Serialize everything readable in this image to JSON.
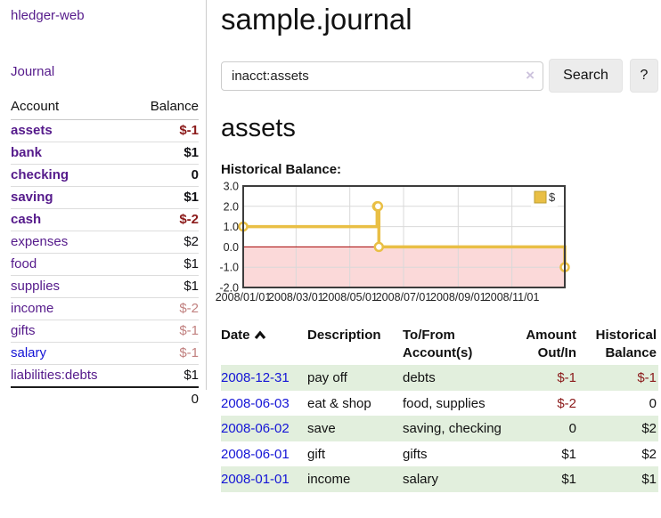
{
  "app": {
    "title": "hledger-web",
    "nav_journal": "Journal"
  },
  "sidebar": {
    "headers": {
      "account": "Account",
      "balance": "Balance"
    },
    "accounts": [
      {
        "name": "assets",
        "depth": 1,
        "in_filter": true,
        "link_color": "purple",
        "balance": "$-1",
        "balance_class": "neg-strong"
      },
      {
        "name": "bank",
        "depth": 2,
        "in_filter": true,
        "link_color": "purple",
        "balance": "$1",
        "balance_class": "pos-strong"
      },
      {
        "name": "checking",
        "depth": 3,
        "in_filter": true,
        "link_color": "purple",
        "balance": "0",
        "balance_class": "pos-strong"
      },
      {
        "name": "saving",
        "depth": 3,
        "in_filter": true,
        "link_color": "purple",
        "balance": "$1",
        "balance_class": "pos-strong"
      },
      {
        "name": "cash",
        "depth": 2,
        "in_filter": true,
        "link_color": "purple",
        "balance": "$-2",
        "balance_class": "neg-strong"
      },
      {
        "name": "expenses",
        "depth": 1,
        "in_filter": false,
        "link_color": "purple",
        "balance": "$2",
        "balance_class": "pos"
      },
      {
        "name": "food",
        "depth": 2,
        "in_filter": false,
        "link_color": "purple",
        "balance": "$1",
        "balance_class": "pos"
      },
      {
        "name": "supplies",
        "depth": 2,
        "in_filter": false,
        "link_color": "purple",
        "balance": "$1",
        "balance_class": "pos"
      },
      {
        "name": "income",
        "depth": 1,
        "in_filter": false,
        "link_color": "purple",
        "balance": "$-2",
        "balance_class": "neg-faded"
      },
      {
        "name": "gifts",
        "depth": 2,
        "in_filter": false,
        "link_color": "purple",
        "balance": "$-1",
        "balance_class": "neg-faded"
      },
      {
        "name": "salary",
        "depth": 2,
        "in_filter": false,
        "link_color": "blue",
        "balance": "$-1",
        "balance_class": "neg-faded"
      },
      {
        "name": "liabilities:debts",
        "depth": 1,
        "in_filter": false,
        "link_color": "purple",
        "balance": "$1",
        "balance_class": "pos"
      }
    ],
    "total": "0"
  },
  "header": {
    "title": "sample.journal"
  },
  "search": {
    "value": "inacct:assets",
    "clear_icon": "×",
    "button_label": "Search",
    "help_label": "?"
  },
  "account_page": {
    "heading": "assets",
    "chart_title": "Historical Balance:"
  },
  "chart_data": {
    "type": "line",
    "title": "Historical Balance:",
    "step": true,
    "legend": "$",
    "legend_position": "top-right",
    "series": [
      {
        "name": "$",
        "color": "#E9BF45",
        "points": [
          {
            "date": "2008-01-01",
            "day": 0,
            "value": 1
          },
          {
            "date": "2008-06-01",
            "day": 152,
            "value": 2
          },
          {
            "date": "2008-06-02",
            "day": 153,
            "value": 2
          },
          {
            "date": "2008-06-03",
            "day": 154,
            "value": 0
          },
          {
            "date": "2008-12-31",
            "day": 365,
            "value": -1
          }
        ]
      }
    ],
    "x_range_days": [
      0,
      365
    ],
    "x_ticks": [
      {
        "label": "2008/01/01",
        "day": 0
      },
      {
        "label": "2008/03/01",
        "day": 60
      },
      {
        "label": "2008/05/01",
        "day": 121
      },
      {
        "label": "2008/07/01",
        "day": 182
      },
      {
        "label": "2008/09/01",
        "day": 244
      },
      {
        "label": "2008/11/01",
        "day": 305
      }
    ],
    "y_ticks": [
      3.0,
      2.0,
      1.0,
      0.0,
      -1.0,
      -2.0
    ],
    "ylim": [
      -2,
      3
    ],
    "grid": true,
    "negative_fill": "#fbd9d9",
    "zero_line_color": "#a40000",
    "border_color": "#3c3c3c"
  },
  "register": {
    "columns": [
      {
        "label": "Date",
        "sortable": true
      },
      {
        "label": "Description",
        "sortable": false
      },
      {
        "label": "To/From Account(s)",
        "sortable": false
      },
      {
        "label": "Amount Out/In",
        "sortable": false
      },
      {
        "label": "Historical Balance",
        "sortable": false
      }
    ],
    "rows": [
      {
        "date": "2008-12-31",
        "description": "pay off",
        "accounts": "debts",
        "amount": "$-1",
        "amount_neg": true,
        "balance": "$-1",
        "balance_neg": true
      },
      {
        "date": "2008-06-03",
        "description": "eat & shop",
        "accounts": "food, supplies",
        "amount": "$-2",
        "amount_neg": true,
        "balance": "0",
        "balance_neg": false
      },
      {
        "date": "2008-06-02",
        "description": "save",
        "accounts": "saving, checking",
        "amount": "0",
        "amount_neg": false,
        "balance": "$2",
        "balance_neg": false
      },
      {
        "date": "2008-06-01",
        "description": "gift",
        "accounts": "gifts",
        "amount": "$1",
        "amount_neg": false,
        "balance": "$2",
        "balance_neg": false
      },
      {
        "date": "2008-01-01",
        "description": "income",
        "accounts": "salary",
        "amount": "$1",
        "amount_neg": false,
        "balance": "$1",
        "balance_neg": false
      }
    ]
  },
  "colors": {
    "accent_purple": "#551a8b",
    "link_blue": "#1414d6",
    "negative_strong": "#8b1a1a",
    "negative_faded": "#c1807f",
    "row_green": "#e2efdd",
    "chart_line": "#E9BF45",
    "chart_negative_fill": "#fbd9d9",
    "chart_zero_line": "#a40000"
  }
}
